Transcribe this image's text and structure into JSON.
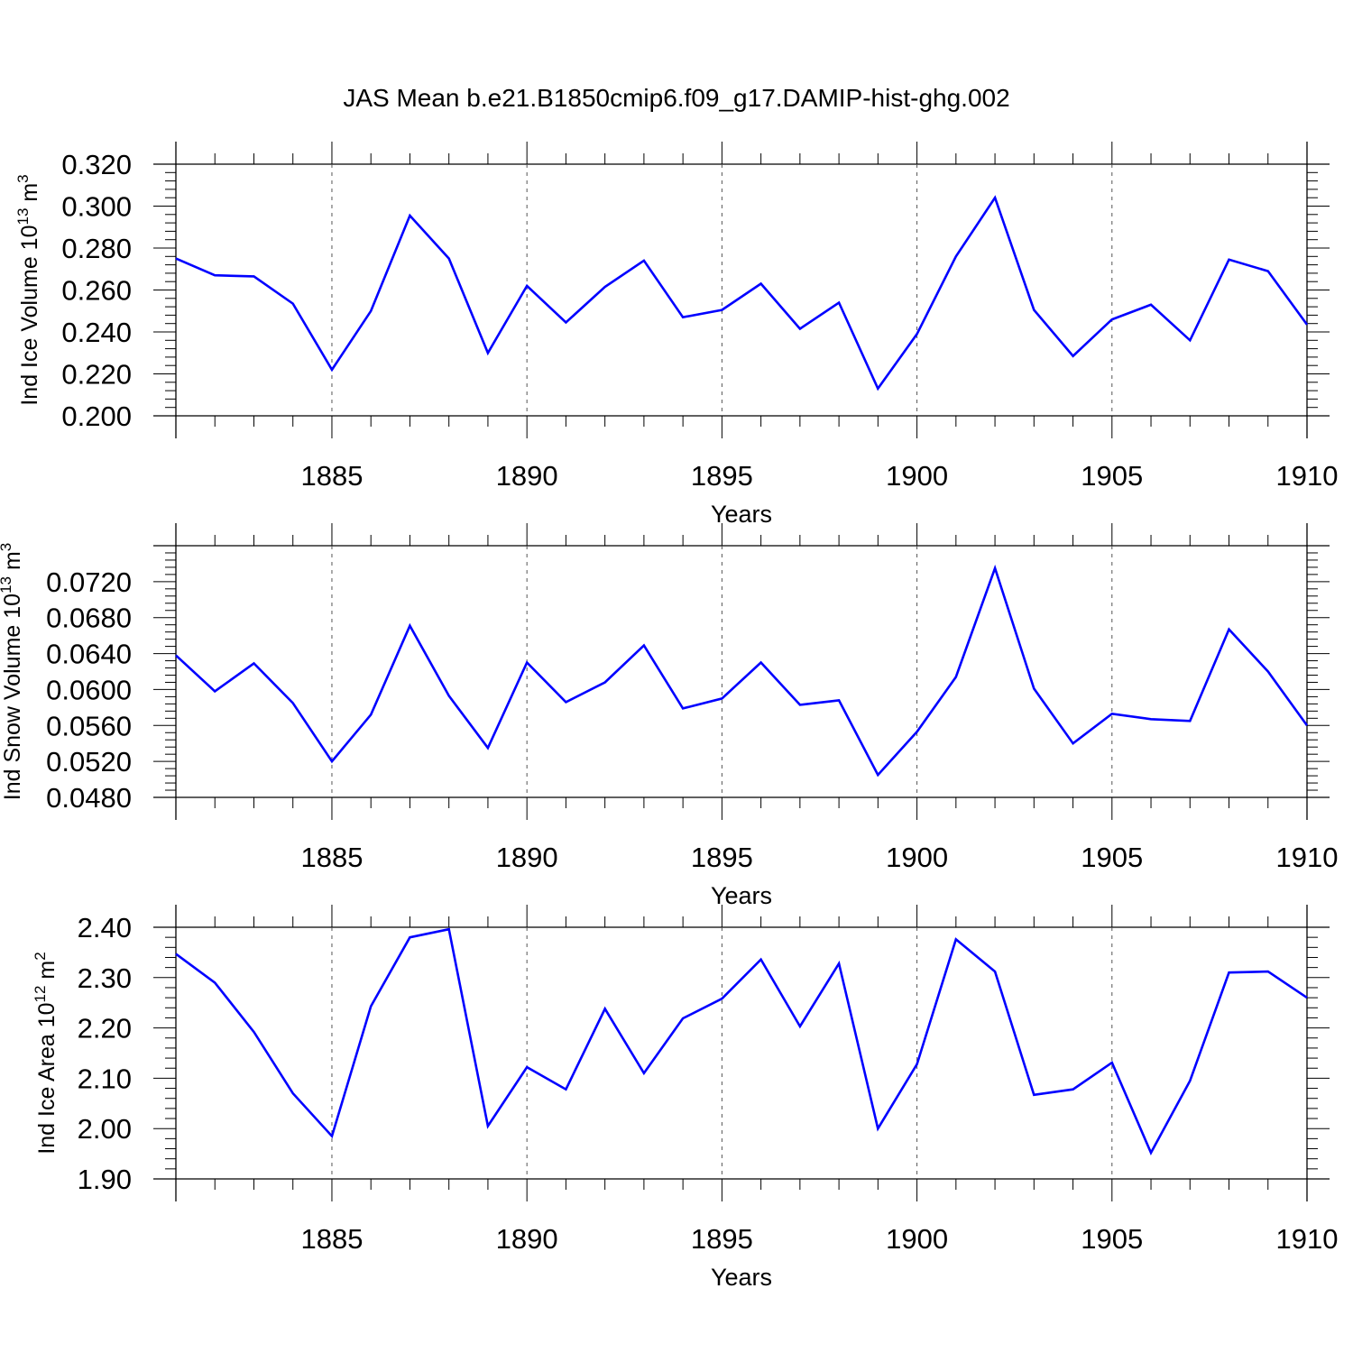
{
  "title": "JAS Mean b.e21.B1850cmip6.f09_g17.DAMIP-hist-ghg.002",
  "line_color": "#0000ff",
  "chart_data": [
    {
      "type": "line",
      "ylabel": "Ind Ice Volume 10",
      "ylabel_exp": "13",
      "ylabel_unit": " m",
      "ylabel_unit_exp": "3",
      "xlabel": "Years",
      "xlim": [
        1881,
        1910
      ],
      "ylim": [
        0.2,
        0.32
      ],
      "yticks": [
        "0.200",
        "0.220",
        "0.240",
        "0.260",
        "0.280",
        "0.300",
        "0.320"
      ],
      "xticks": [
        "1885",
        "1890",
        "1895",
        "1900",
        "1905",
        "1910"
      ],
      "grid": "x-dashed",
      "x": [
        1881,
        1882,
        1883,
        1884,
        1885,
        1886,
        1887,
        1888,
        1889,
        1890,
        1891,
        1892,
        1893,
        1894,
        1895,
        1896,
        1897,
        1898,
        1899,
        1900,
        1901,
        1902,
        1903,
        1904,
        1905,
        1906,
        1907,
        1908,
        1909,
        1910
      ],
      "values": [
        0.275,
        0.267,
        0.2665,
        0.2535,
        0.222,
        0.25,
        0.2955,
        0.275,
        0.23,
        0.262,
        0.2445,
        0.2615,
        0.274,
        0.247,
        0.2505,
        0.263,
        0.2415,
        0.254,
        0.213,
        0.239,
        0.276,
        0.304,
        0.2505,
        0.2285,
        0.246,
        0.253,
        0.236,
        0.2745,
        0.269,
        0.2435
      ]
    },
    {
      "type": "line",
      "ylabel": "Ind Snow Volume 10",
      "ylabel_exp": "13",
      "ylabel_unit": " m",
      "ylabel_unit_exp": "3",
      "xlabel": "Years",
      "xlim": [
        1881,
        1910
      ],
      "ylim": [
        0.048,
        0.076
      ],
      "yticks": [
        "0.0480",
        "0.0520",
        "0.0560",
        "0.0600",
        "0.0640",
        "0.0680",
        "0.0720"
      ],
      "xticks": [
        "1885",
        "1890",
        "1895",
        "1900",
        "1905",
        "1910"
      ],
      "grid": "x-dashed",
      "x": [
        1881,
        1882,
        1883,
        1884,
        1885,
        1886,
        1887,
        1888,
        1889,
        1890,
        1891,
        1892,
        1893,
        1894,
        1895,
        1896,
        1897,
        1898,
        1899,
        1900,
        1901,
        1902,
        1903,
        1904,
        1905,
        1906,
        1907,
        1908,
        1909,
        1910
      ],
      "values": [
        0.0638,
        0.0598,
        0.0629,
        0.0585,
        0.052,
        0.0572,
        0.0671,
        0.0593,
        0.0535,
        0.063,
        0.0586,
        0.0608,
        0.0649,
        0.0579,
        0.059,
        0.063,
        0.0583,
        0.0588,
        0.0505,
        0.0553,
        0.0614,
        0.0735,
        0.0601,
        0.054,
        0.0573,
        0.0567,
        0.0565,
        0.0667,
        0.062,
        0.056
      ]
    },
    {
      "type": "line",
      "ylabel": "Ind Ice Area 10",
      "ylabel_exp": "12",
      "ylabel_unit": " m",
      "ylabel_unit_exp": "2",
      "xlabel": "Years",
      "xlim": [
        1881,
        1910
      ],
      "ylim": [
        1.9,
        2.4
      ],
      "yticks": [
        "1.90",
        "2.00",
        "2.10",
        "2.20",
        "2.30",
        "2.40"
      ],
      "xticks": [
        "1885",
        "1890",
        "1895",
        "1900",
        "1905",
        "1910"
      ],
      "grid": "x-dashed",
      "x": [
        1881,
        1882,
        1883,
        1884,
        1885,
        1886,
        1887,
        1888,
        1889,
        1890,
        1891,
        1892,
        1893,
        1894,
        1895,
        1896,
        1897,
        1898,
        1899,
        1900,
        1901,
        1902,
        1903,
        1904,
        1905,
        1906,
        1907,
        1908,
        1909,
        1910
      ],
      "values": [
        2.347,
        2.29,
        2.192,
        2.07,
        1.985,
        2.243,
        2.38,
        2.396,
        2.005,
        2.122,
        2.078,
        2.238,
        2.11,
        2.219,
        2.258,
        2.336,
        2.203,
        2.328,
        2.0,
        2.128,
        2.376,
        2.312,
        2.067,
        2.078,
        2.131,
        1.952,
        2.095,
        2.31,
        2.312,
        2.26
      ]
    }
  ]
}
